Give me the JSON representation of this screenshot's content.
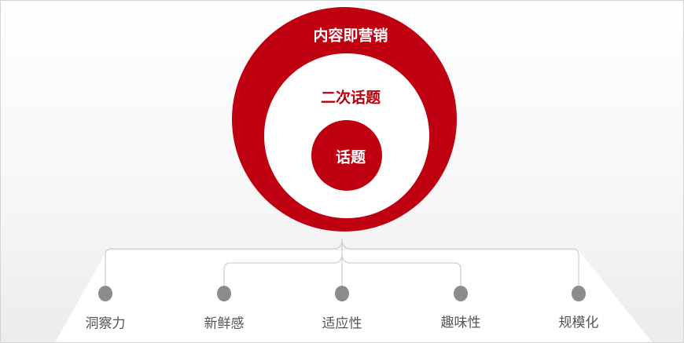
{
  "circles": {
    "outer_label": "内容即营销",
    "middle_label": "二次话题",
    "inner_label": "话题"
  },
  "items": [
    {
      "label": "洞察力"
    },
    {
      "label": "新鲜感"
    },
    {
      "label": "适应性"
    },
    {
      "label": "趣味性"
    },
    {
      "label": "规模化"
    }
  ],
  "colors": {
    "accent": "#bf0010",
    "dot": "#8c8c8c",
    "line": "#cfcfcf"
  }
}
